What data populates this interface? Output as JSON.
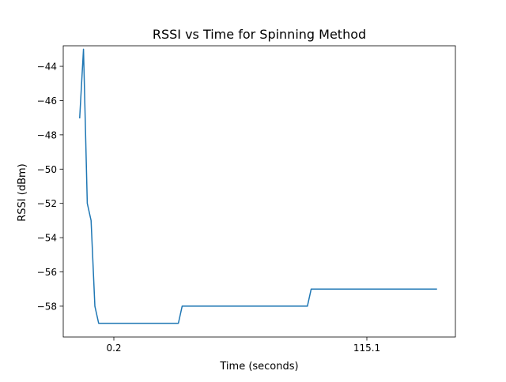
{
  "chart_data": {
    "type": "line",
    "title": "RSSI vs Time for Spinning Method",
    "xlabel": "Time (seconds)",
    "ylabel": "RSSI (dBm)",
    "xlim": [
      -4,
      27
    ],
    "ylim": [
      -59.8,
      -42.8
    ],
    "grid": false,
    "legend": "none",
    "x_ticks": [
      {
        "value": 0,
        "label": "0.2"
      },
      {
        "value": 20,
        "label": "115.1"
      }
    ],
    "y_ticks": [
      {
        "value": -44,
        "label": "−44"
      },
      {
        "value": -46,
        "label": "−46"
      },
      {
        "value": -48,
        "label": "−48"
      },
      {
        "value": -50,
        "label": "−50"
      },
      {
        "value": -52,
        "label": "−52"
      },
      {
        "value": -54,
        "label": "−54"
      },
      {
        "value": -56,
        "label": "−56"
      },
      {
        "value": -58,
        "label": "−58"
      }
    ],
    "series": [
      {
        "color": "#1f77b4",
        "x": [
          -2.7,
          -2.4,
          -2.1,
          -1.8,
          -1.5,
          -1.2,
          0,
          5.1,
          5.4,
          15.3,
          15.6,
          25.5
        ],
        "y": [
          -47,
          -43,
          -52,
          -53,
          -58,
          -59,
          -59,
          -59,
          -58,
          -58,
          -57,
          -57
        ]
      }
    ]
  }
}
